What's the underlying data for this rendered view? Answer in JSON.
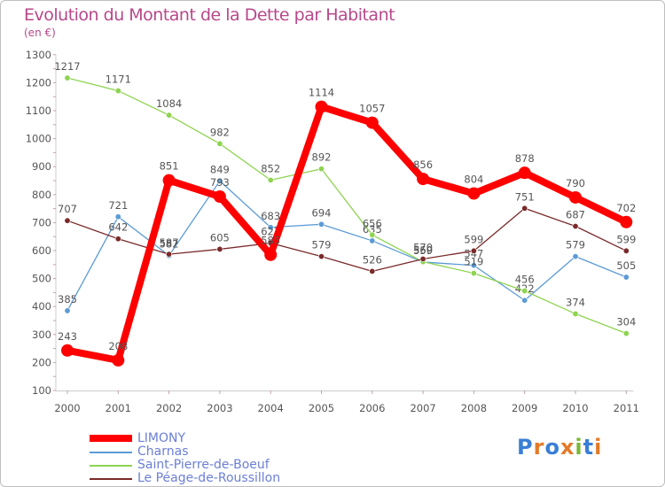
{
  "title": "Evolution du Montant de la Dette par Habitant",
  "unit": "(en €)",
  "logo": {
    "text": "Proxiti"
  },
  "chart_data": {
    "type": "line",
    "categories": [
      "2000",
      "2001",
      "2002",
      "2003",
      "2004",
      "2005",
      "2006",
      "2007",
      "2008",
      "2009",
      "2010",
      "2011"
    ],
    "ylim": [
      100,
      1300
    ],
    "yticks": [
      100,
      200,
      300,
      400,
      500,
      600,
      700,
      800,
      900,
      1000,
      1100,
      1200,
      1300
    ],
    "grid": false,
    "legend_position": "bottom-left",
    "series": [
      {
        "name": "LIMONY",
        "color": "#ff0000",
        "values": [
          243,
          208,
          851,
          793,
          585,
          1114,
          1057,
          856,
          804,
          878,
          790,
          702
        ],
        "labels": [
          "243",
          "208",
          "851",
          "793",
          "585",
          "1114",
          "1057",
          "856",
          "804",
          "878",
          "790",
          "702"
        ]
      },
      {
        "name": "Charnas",
        "color": "#5b9bd5",
        "values": [
          385,
          721,
          582,
          849,
          683,
          694,
          635,
          559,
          547,
          422,
          579,
          505
        ],
        "labels": [
          "385",
          "721",
          "582",
          "849",
          "683",
          "694",
          "635",
          "559",
          "547",
          "422",
          "579",
          "505"
        ]
      },
      {
        "name": "Saint-Pierre-de-Boeuf",
        "color": "#8ed450",
        "values": [
          1217,
          1171,
          1084,
          982,
          852,
          892,
          656,
          560,
          519,
          456,
          374,
          304
        ],
        "labels": [
          "1217",
          "1171",
          "1084",
          "982",
          "852",
          "892",
          "656",
          "560",
          "519",
          "456",
          "374",
          "304"
        ]
      },
      {
        "name": "Le Péage-de-Roussillon",
        "color": "#7a2a2a",
        "values": [
          707,
          642,
          587,
          605,
          627,
          579,
          526,
          570,
          599,
          751,
          687,
          599
        ],
        "labels": [
          "707",
          "642",
          "587",
          "605",
          "627",
          "579",
          "526",
          "570",
          "599",
          "751",
          "687",
          "599"
        ]
      }
    ]
  }
}
